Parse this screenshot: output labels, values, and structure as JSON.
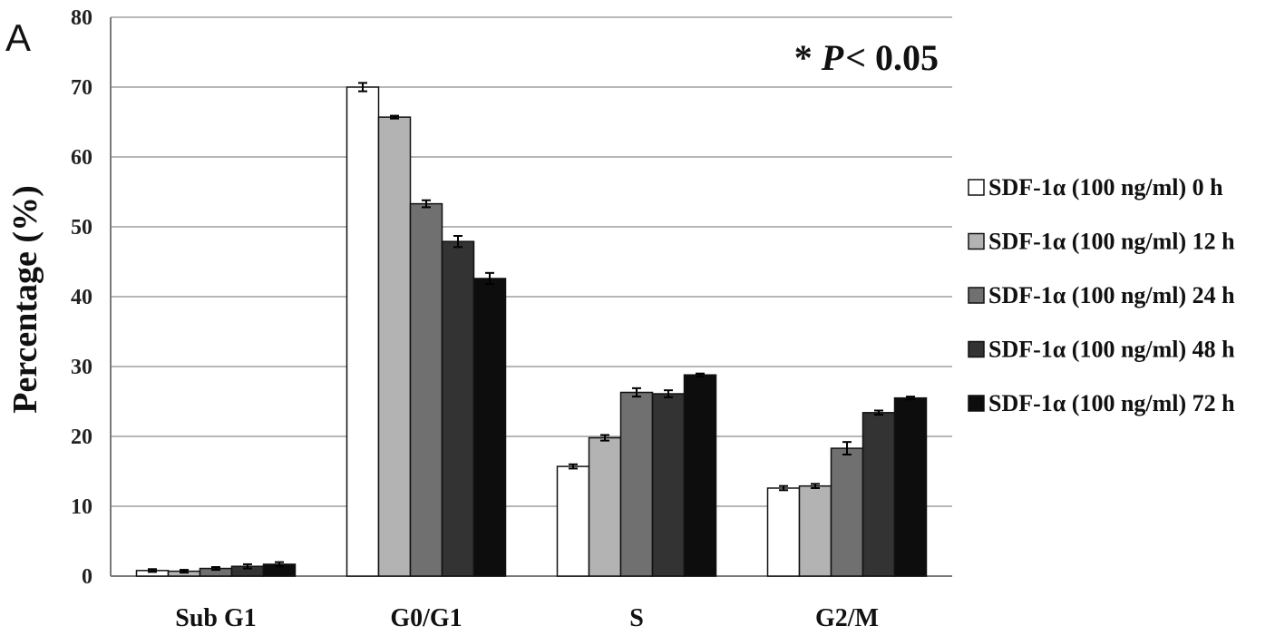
{
  "panel_label": "A",
  "annotation": {
    "star": "*",
    "p_letter": "P",
    "rest": "< 0.05"
  },
  "colors": {
    "grid": "#8c8c8c",
    "axis": "#7a7a7a",
    "bar_stroke": "#111111",
    "series": [
      "#ffffff",
      "#b3b3b3",
      "#707070",
      "#333333",
      "#0d0d0d"
    ]
  },
  "chart_data": {
    "type": "bar",
    "title": "",
    "xlabel": "",
    "ylabel": "Percentage (%)",
    "ylim": [
      0,
      80
    ],
    "yticks": [
      0,
      10,
      20,
      30,
      40,
      50,
      60,
      70,
      80
    ],
    "grid": true,
    "legend_position": "right",
    "categories": [
      "Sub G1",
      "G0/G1",
      "S",
      "G2/M"
    ],
    "series": [
      {
        "name": "SDF-1α (100 ng/ml) 0 h",
        "values": [
          0.8,
          70.0,
          15.7,
          12.6
        ],
        "errors": [
          0.2,
          0.6,
          0.3,
          0.3
        ]
      },
      {
        "name": "SDF-1α (100 ng/ml) 12 h",
        "values": [
          0.7,
          65.7,
          19.8,
          12.9
        ],
        "errors": [
          0.2,
          0.2,
          0.4,
          0.3
        ]
      },
      {
        "name": "SDF-1α (100 ng/ml) 24 h",
        "values": [
          1.1,
          53.3,
          26.3,
          18.3
        ],
        "errors": [
          0.2,
          0.5,
          0.6,
          0.9
        ]
      },
      {
        "name": "SDF-1α (100 ng/ml) 48 h",
        "values": [
          1.4,
          47.9,
          26.1,
          23.4
        ],
        "errors": [
          0.3,
          0.8,
          0.5,
          0.3
        ]
      },
      {
        "name": "SDF-1α (100 ng/ml) 72 h",
        "values": [
          1.7,
          42.6,
          28.8,
          25.5
        ],
        "errors": [
          0.3,
          0.8,
          0.2,
          0.2
        ]
      }
    ]
  }
}
